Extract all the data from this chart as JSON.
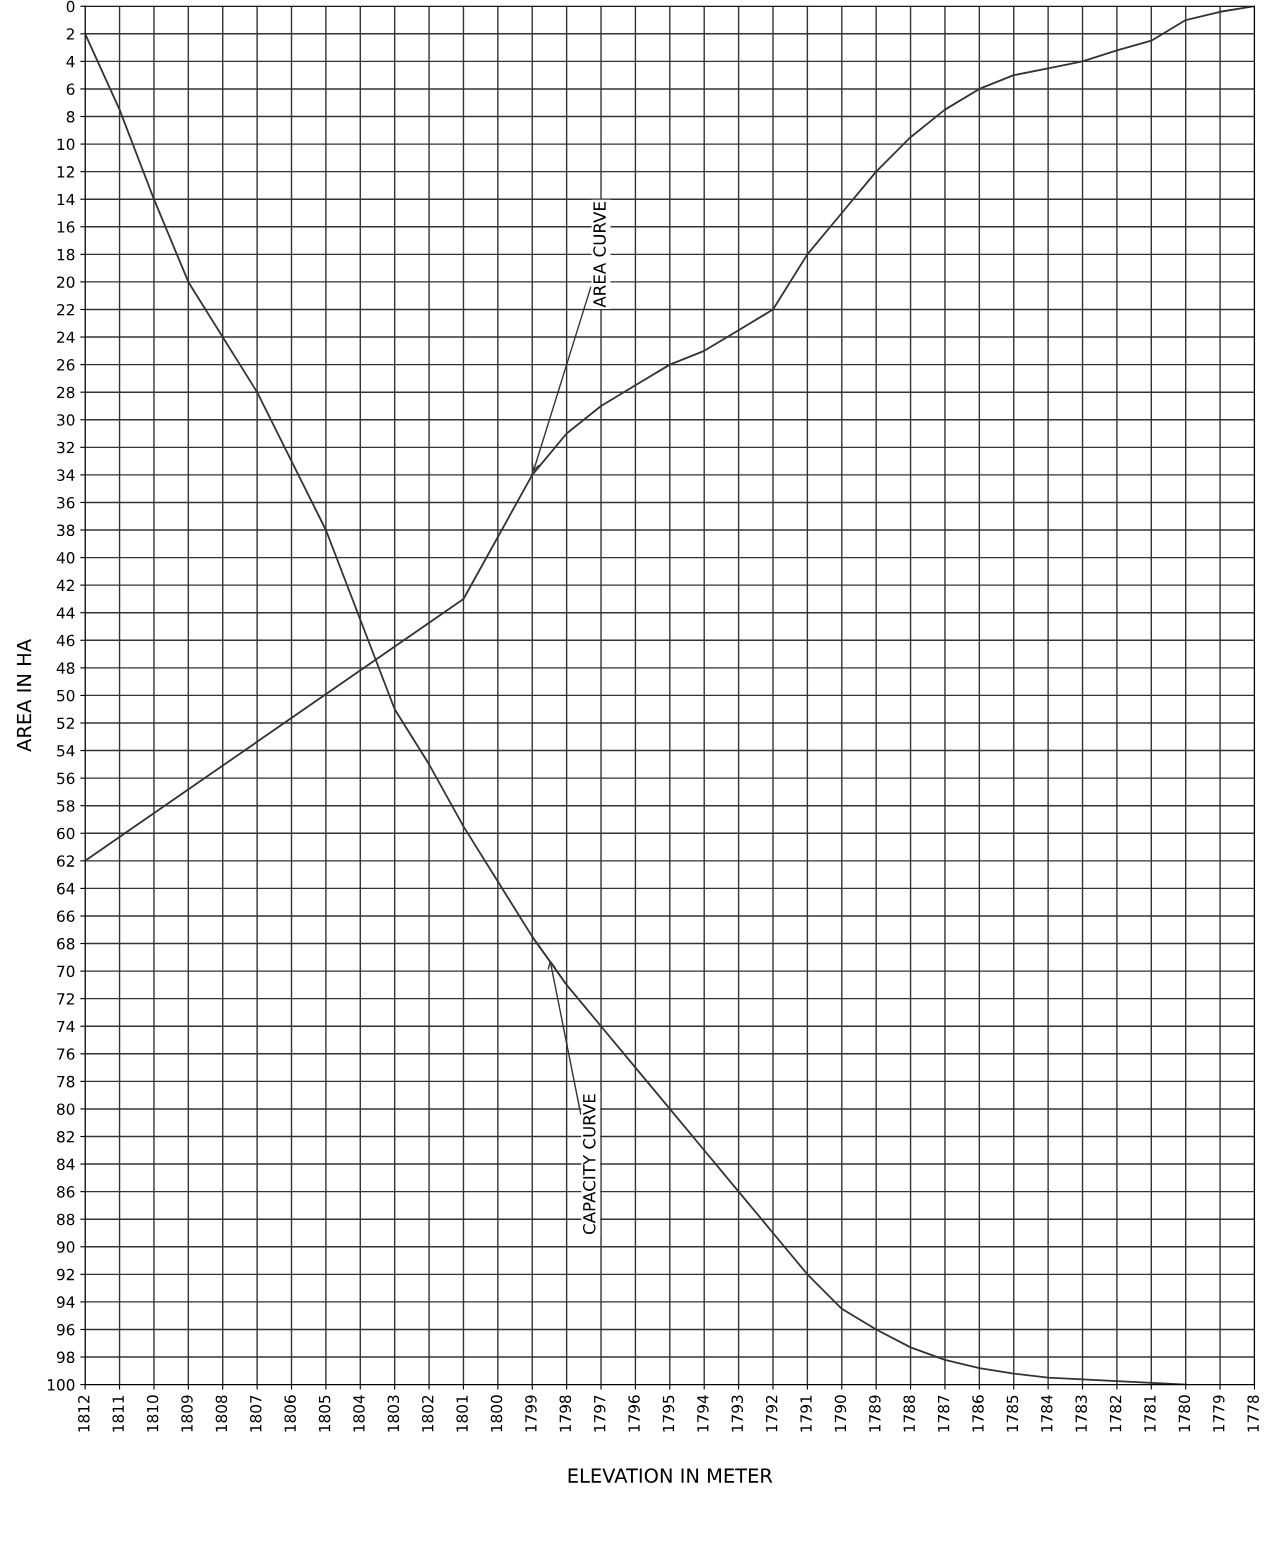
{
  "chart_data": {
    "type": "line",
    "xlabel": "ELEVATION IN METER",
    "ylabel": "AREA IN HA",
    "x": [
      1812,
      1811,
      1810,
      1809,
      1808,
      1807,
      1806,
      1805,
      1804,
      1803,
      1802,
      1801,
      1800,
      1799,
      1798,
      1797,
      1796,
      1795,
      1794,
      1793,
      1792,
      1791,
      1790,
      1789,
      1788,
      1787,
      1786,
      1785,
      1784,
      1783,
      1782,
      1781,
      1780,
      1779,
      1778
    ],
    "series": [
      {
        "color": "#333333",
        "values": [
          62,
          null,
          null,
          null,
          null,
          null,
          null,
          null,
          null,
          null,
          null,
          43,
          null,
          34,
          31,
          29,
          27.5,
          26,
          25,
          23.5,
          22,
          18,
          15,
          12,
          9.5,
          7.5,
          6,
          5,
          4.5,
          4,
          3.2,
          2.5,
          1,
          0.4,
          0
        ]
      },
      {
        "color": "#333333",
        "values": [
          2,
          7.5,
          14,
          20,
          null,
          28,
          33,
          38,
          null,
          51,
          55,
          59.5,
          63.5,
          67.5,
          71,
          74,
          77,
          80,
          83,
          86,
          89,
          92,
          94.5,
          96,
          97.3,
          98.2,
          98.8,
          99.2,
          99.5,
          null,
          null,
          null,
          100,
          null,
          null
        ]
      }
    ],
    "xlim": [
      1812,
      1778
    ],
    "xticks": [
      1812,
      1811,
      1810,
      1809,
      1808,
      1807,
      1806,
      1805,
      1804,
      1803,
      1802,
      1801,
      1800,
      1799,
      1798,
      1797,
      1796,
      1795,
      1794,
      1793,
      1792,
      1791,
      1790,
      1789,
      1788,
      1787,
      1786,
      1785,
      1784,
      1783,
      1782,
      1781,
      1780,
      1779,
      1778
    ],
    "ylim": [
      100,
      0
    ],
    "yticks": [
      0,
      2,
      4,
      6,
      8,
      10,
      12,
      14,
      16,
      18,
      20,
      22,
      24,
      26,
      28,
      30,
      32,
      34,
      36,
      38,
      40,
      42,
      44,
      46,
      48,
      50,
      52,
      54,
      56,
      58,
      60,
      62,
      64,
      66,
      68,
      70,
      72,
      74,
      76,
      78,
      80,
      82,
      84,
      86,
      88,
      90,
      92,
      94,
      96,
      98,
      100
    ],
    "grid": true,
    "marker": "none",
    "line_style": "solid",
    "annotations": [
      {
        "text": "AREA CURVE",
        "x": 1799,
        "y": 34
      },
      {
        "text": "CAPACITY CURVE",
        "x": 1798.5,
        "y": 69
      }
    ]
  }
}
